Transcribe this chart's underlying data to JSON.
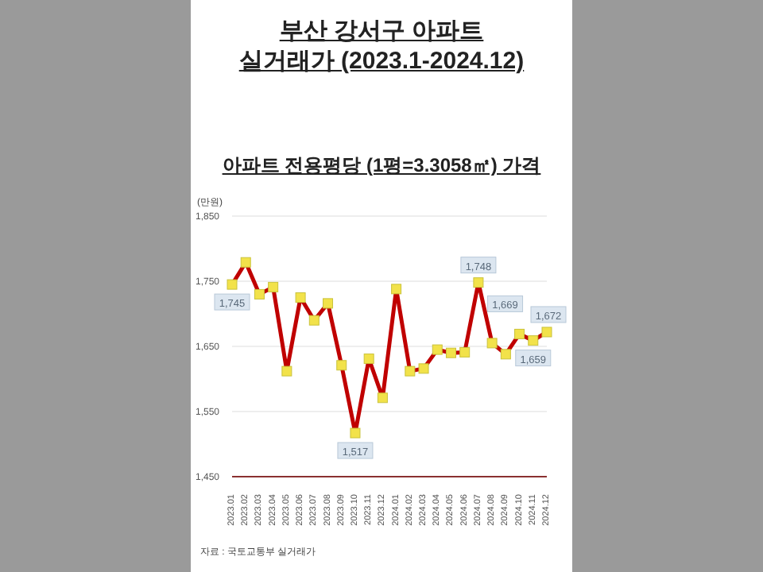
{
  "chart_data": {
    "type": "line",
    "title": "부산 강서구 아파트\n실거래가 (2023.1-2024.12)",
    "subtitle": "아파트 전용평당 (1평=3.3058㎡) 가격",
    "ylabel": "(만원)",
    "categories": [
      "2023.01",
      "2023.02",
      "2023.03",
      "2023.04",
      "2023.05",
      "2023.06",
      "2023.07",
      "2023.08",
      "2023.09",
      "2023.10",
      "2023.11",
      "2023.12",
      "2024.01",
      "2024.02",
      "2024.03",
      "2024.04",
      "2024.05",
      "2024.06",
      "2024.07",
      "2024.08",
      "2024.09",
      "2024.10",
      "2024.11",
      "2024.12"
    ],
    "series": [
      {
        "color": "#c00000",
        "values": [
          1745,
          1779,
          1730,
          1741,
          1612,
          1725,
          1690,
          1716,
          1621,
          1517,
          1631,
          1571,
          1738,
          1612,
          1616,
          1645,
          1640,
          1641,
          1748,
          1655,
          1638,
          1669,
          1659,
          1672
        ],
        "value_labels": [
          "1,745",
          null,
          null,
          null,
          null,
          null,
          null,
          null,
          null,
          "1,517",
          null,
          null,
          null,
          null,
          null,
          null,
          null,
          null,
          "1,748",
          null,
          null,
          "1,669",
          "1,659",
          "1,672"
        ]
      }
    ],
    "ylim": [
      1450,
      1850
    ],
    "yticks": [
      {
        "value": 1450,
        "label": "1,450"
      },
      {
        "value": 1550,
        "label": "1,550"
      },
      {
        "value": 1650,
        "label": "1,650"
      },
      {
        "value": 1750,
        "label": "1,750"
      },
      {
        "value": 1850,
        "label": "1,850"
      }
    ],
    "grid": "y",
    "marker": "square",
    "line_style": "solid",
    "legend": false,
    "annotations": [
      "자료 : 국토교통부 실거래가"
    ]
  }
}
